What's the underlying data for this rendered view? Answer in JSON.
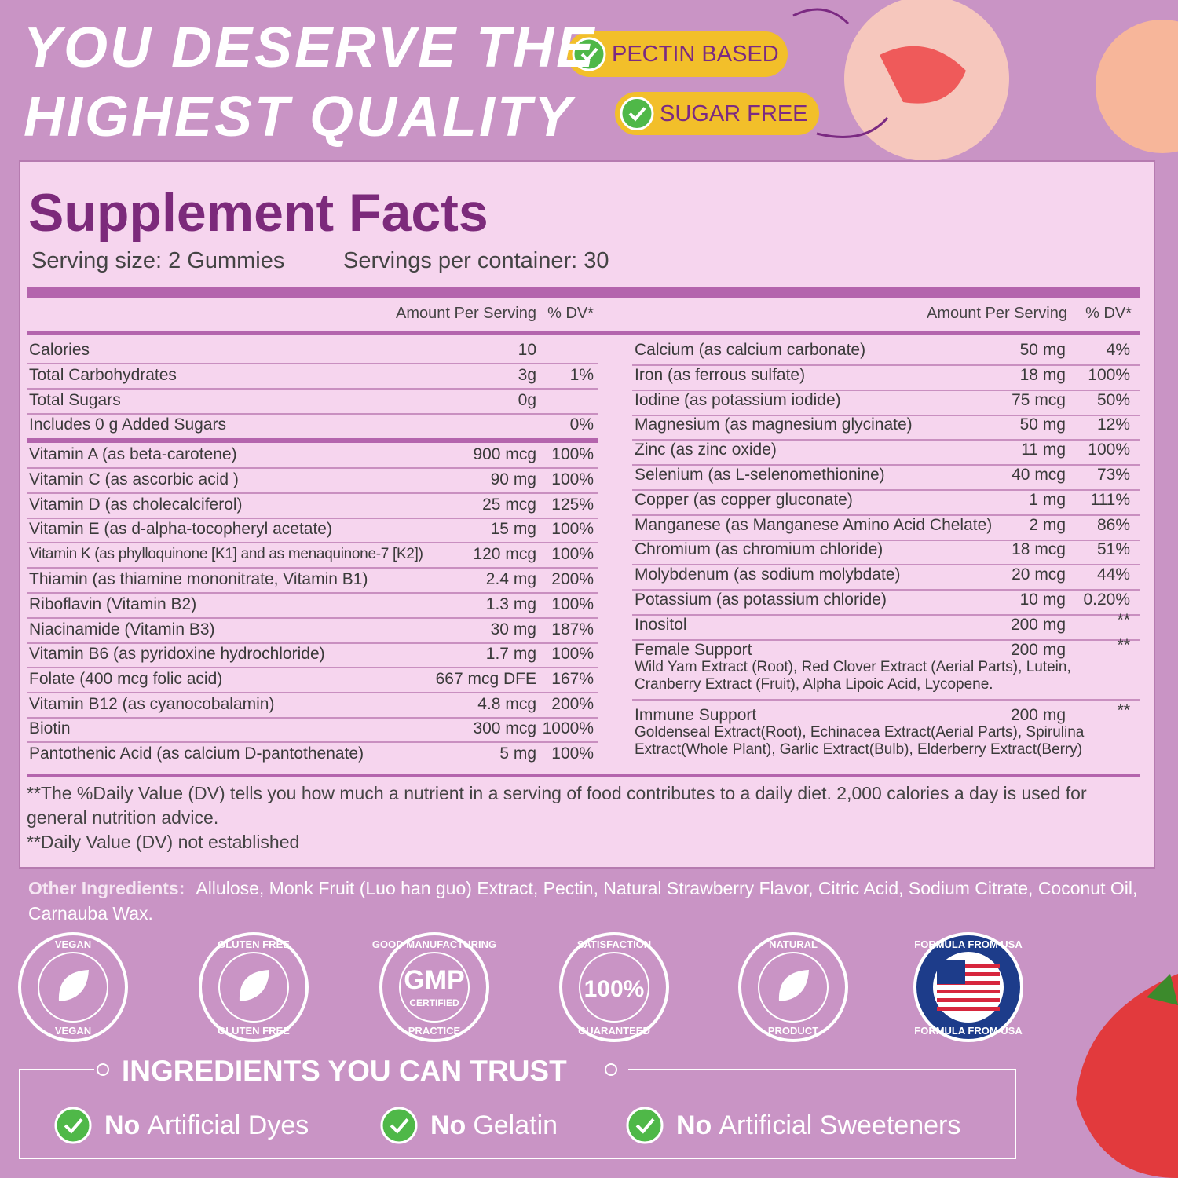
{
  "headline": [
    "YOU DESERVE THE",
    "HIGHEST QUALITY"
  ],
  "badges": [
    "PECTIN BASED",
    "SUGAR FREE"
  ],
  "facts": {
    "title": "Supplement Facts",
    "serving_size": "Serving size: 2 Gummies",
    "servings": "Servings per container: 30",
    "header": {
      "amount": "Amount Per Serving",
      "dv": "% DV*"
    },
    "left": [
      [
        [
          "Calories",
          "10",
          null
        ],
        [
          "Total Carbohydrates",
          "3g",
          "1%"
        ],
        [
          "Total Sugars",
          "0g",
          null
        ],
        [
          "Includes 0 g Added Sugars",
          null,
          "0%"
        ]
      ],
      [
        [
          "Vitamin A (as beta-carotene)",
          "900 mcg",
          "100%"
        ],
        [
          "Vitamin C (as ascorbic acid )",
          "90 mg",
          "100%"
        ],
        [
          "Vitamin D (as cholecalciferol)",
          "25 mcg",
          "125%"
        ],
        [
          "Vitamin E (as d-alpha-tocopheryl acetate)",
          "15 mg",
          "100%"
        ],
        [
          "Vitamin K (as phylloquinone [K1] and as menaquinone-7 [K2])",
          "120 mcg",
          "100%"
        ],
        [
          "Thiamin (as thiamine mononitrate, Vitamin B1)",
          "2.4 mg",
          "200%"
        ],
        [
          "Riboflavin (Vitamin B2)",
          "1.3 mg",
          "100%"
        ],
        [
          "Niacinamide (Vitamin B3)",
          "30 mg",
          "187%"
        ],
        [
          "Vitamin B6 (as pyridoxine hydrochloride)",
          "1.7 mg",
          "100%"
        ],
        [
          "Folate (400 mcg folic acid)",
          "667 mcg DFE",
          "167%"
        ],
        [
          "Vitamin B12 (as cyanocobalamin)",
          "4.8 mcg",
          "200%"
        ],
        [
          "Biotin",
          "300 mcg",
          "1000%"
        ],
        [
          "Pantothenic Acid (as calcium D-pantothenate)",
          "5 mg",
          "100%"
        ]
      ]
    ],
    "right": [
      {
        "name": "Calcium (as calcium carbonate)",
        "amount": "50 mg",
        "dv": "4%"
      },
      {
        "name": "Iron (as ferrous sulfate)",
        "amount": "18 mg",
        "dv": "100%"
      },
      {
        "name": "Iodine (as potassium iodide)",
        "amount": "75 mcg",
        "dv": "50%"
      },
      {
        "name": "Magnesium (as magnesium glycinate)",
        "amount": "50 mg",
        "dv": "12%"
      },
      {
        "name": "Zinc (as zinc oxide)",
        "amount": "11 mg",
        "dv": "100%"
      },
      {
        "name": "Selenium (as L-selenomethionine)",
        "amount": "40 mcg",
        "dv": "73%"
      },
      {
        "name": "Copper (as copper gluconate)",
        "amount": "1 mg",
        "dv": "111%"
      },
      {
        "name": "Manganese (as Manganese Amino Acid Chelate)",
        "amount": "2 mg",
        "dv": "86%"
      },
      {
        "name": "Chromium (as chromium chloride)",
        "amount": "18 mcg",
        "dv": "51%"
      },
      {
        "name": "Molybdenum (as sodium molybdate)",
        "amount": "20 mcg",
        "dv": "44%"
      },
      {
        "name": "Potassium (as potassium chloride)",
        "amount": "10 mg",
        "dv": "0.20%"
      },
      {
        "name": "Inositol",
        "amount": "200 mg",
        "dv": "**"
      },
      {
        "name": "Female Support",
        "amount": "200 mg",
        "dv": "**",
        "desc": "Wild Yam Extract (Root), Red Clover Extract (Aerial Parts), Lutein, Cranberry Extract (Fruit), Alpha Lipoic Acid, Lycopene."
      },
      {
        "name": "Immune Support",
        "amount": "200 mg",
        "dv": "**",
        "desc": "Goldenseal Extract(Root), Echinacea Extract(Aerial Parts), Spirulina Extract(Whole Plant), Garlic Extract(Bulb), Elderberry Extract(Berry)"
      }
    ],
    "footnotes": [
      "**The %Daily Value (DV) tells you how much a nutrient in a serving of food contributes to a daily diet. 2,000 calories a day is used for general nutrition advice.",
      "**Daily Value (DV) not established"
    ]
  },
  "other_ingredients": {
    "label": "Other Ingredients:",
    "text": "Allulose, Monk Fruit (Luo han guo) Extract, Pectin, Natural Strawberry Flavor, Citric Acid, Sodium Citrate, Coconut Oil, Carnauba Wax."
  },
  "seals": [
    {
      "top": "VEGAN",
      "bottom": "VEGAN"
    },
    {
      "top": "GLUTEN FREE",
      "bottom": "GLUTEN FREE"
    },
    {
      "top": "GOOD MANUFACTURING",
      "center": "GMP",
      "sub": "CERTIFIED",
      "bottom": "PRACTICE"
    },
    {
      "top": "SATISFACTION",
      "center": "100%",
      "bottom": "GUARANTEED"
    },
    {
      "top": "NATURAL",
      "bottom": "PRODUCT"
    },
    {
      "top": "FORMULA FROM USA",
      "bottom": "FORMULA FROM USA"
    }
  ],
  "trust": {
    "title": "INGREDIENTS YOU CAN TRUST",
    "items": [
      {
        "lead": "No",
        "rest": "Artificial Dyes"
      },
      {
        "lead": "No",
        "rest": "Gelatin"
      },
      {
        "lead": "No",
        "rest": "Artificial Sweeteners"
      }
    ]
  }
}
